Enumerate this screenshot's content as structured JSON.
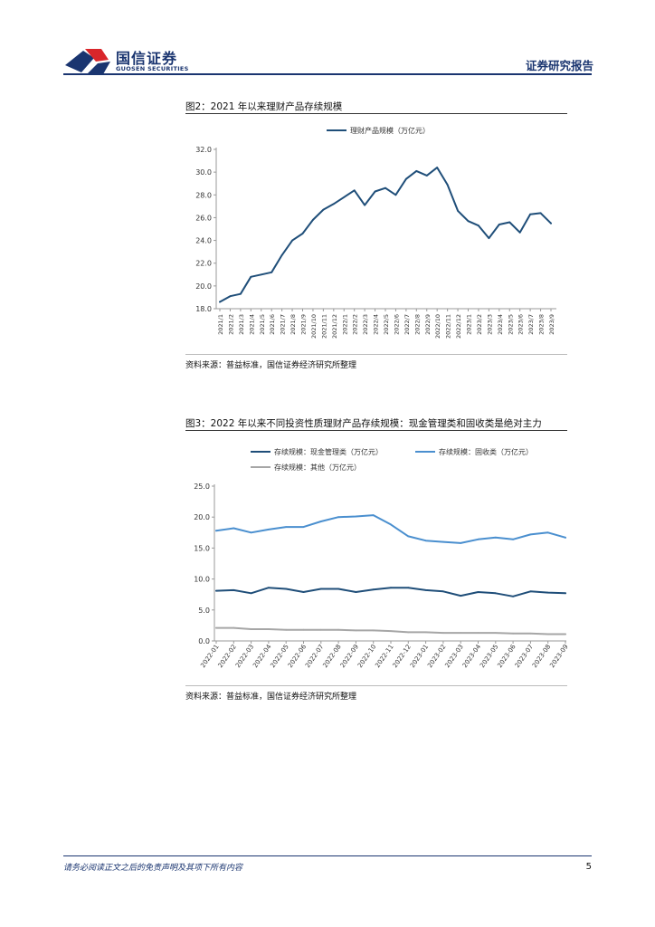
{
  "header": {
    "company_cn": "国信证券",
    "company_en": "GUOSEN SECURITIES",
    "report_type": "证券研究报告",
    "brand_color": "#1a3570",
    "logo_red": "#d9262b"
  },
  "figure2": {
    "title": "图2：2021 年以来理财产品存续规模",
    "source": "资料来源：普益标准，国信证券经济研究所整理"
  },
  "figure3": {
    "title": "图3：2022 年以来不同投资性质理财产品存续规模：现金管理类和固收类是绝对主力",
    "source": "资料来源：普益标准，国信证券经济研究所整理"
  },
  "chart_data": [
    {
      "type": "line",
      "title": "",
      "legend_position": "top-center",
      "x": [
        "2021/1",
        "2021/2",
        "2021/3",
        "2021/4",
        "2021/5",
        "2021/6",
        "2021/7",
        "2021/8",
        "2021/9",
        "2021/10",
        "2021/11",
        "2021/12",
        "2022/1",
        "2022/2",
        "2022/3",
        "2022/4",
        "2022/5",
        "2022/6",
        "2022/7",
        "2022/8",
        "2022/9",
        "2022/10",
        "2022/11",
        "2022/12",
        "2023/1",
        "2023/2",
        "2023/3",
        "2023/4",
        "2023/5",
        "2023/6",
        "2023/7",
        "2023/8",
        "2023/9"
      ],
      "series": [
        {
          "name": "理财产品规模（万亿元）",
          "color": "#1f4e79",
          "values": [
            18.6,
            19.1,
            19.3,
            20.8,
            21.0,
            21.2,
            22.7,
            24.0,
            24.6,
            25.8,
            26.7,
            27.2,
            27.8,
            28.4,
            27.1,
            28.3,
            28.6,
            28.0,
            29.4,
            30.1,
            29.7,
            30.4,
            28.9,
            26.6,
            25.7,
            25.3,
            24.2,
            25.4,
            25.6,
            24.7,
            26.3,
            26.4,
            25.5
          ]
        }
      ],
      "ylim": [
        18.0,
        32.0
      ],
      "yticks": [
        "18.0",
        "20.0",
        "22.0",
        "24.0",
        "26.0",
        "28.0",
        "30.0",
        "32.0"
      ],
      "xlabel": "",
      "ylabel": "",
      "grid": false
    },
    {
      "type": "line",
      "title": "",
      "legend_position": "top",
      "x": [
        "2022-01",
        "2022-02",
        "2022-03",
        "2022-04",
        "2022-05",
        "2022-06",
        "2022-07",
        "2022-08",
        "2022-09",
        "2022-10",
        "2022-11",
        "2022-12",
        "2023-01",
        "2023-02",
        "2023-03",
        "2023-04",
        "2023-05",
        "2023-06",
        "2023-07",
        "2023-08",
        "2023-09"
      ],
      "series": [
        {
          "name": "存续规模：现金管理类（万亿元）",
          "color": "#1f4e79",
          "values": [
            8.1,
            8.2,
            7.7,
            8.6,
            8.4,
            7.9,
            8.4,
            8.4,
            7.9,
            8.3,
            8.6,
            8.6,
            8.2,
            8.0,
            7.3,
            7.9,
            7.7,
            7.2,
            8.0,
            7.8,
            7.7
          ]
        },
        {
          "name": "存续规模：固收类（万亿元）",
          "color": "#4a8fcf",
          "values": [
            17.8,
            18.2,
            17.5,
            18.0,
            18.4,
            18.4,
            19.3,
            20.0,
            20.1,
            20.3,
            18.8,
            16.9,
            16.2,
            16.0,
            15.8,
            16.4,
            16.7,
            16.4,
            17.2,
            17.5,
            16.7
          ]
        },
        {
          "name": "存续规模：其他（万亿元）",
          "color": "#a6a6a6",
          "values": [
            2.1,
            2.1,
            1.9,
            1.9,
            1.8,
            1.8,
            1.8,
            1.8,
            1.7,
            1.7,
            1.6,
            1.4,
            1.4,
            1.3,
            1.3,
            1.3,
            1.3,
            1.2,
            1.2,
            1.1,
            1.1
          ]
        }
      ],
      "ylim": [
        0,
        25
      ],
      "yticks": [
        "0.0",
        "5.0",
        "10.0",
        "15.0",
        "20.0",
        "25.0"
      ],
      "xlabel": "",
      "ylabel": "",
      "grid": false
    }
  ],
  "footer": {
    "disclaimer": "请务必阅读正文之后的免责声明及其项下所有内容",
    "page_number": "5"
  }
}
